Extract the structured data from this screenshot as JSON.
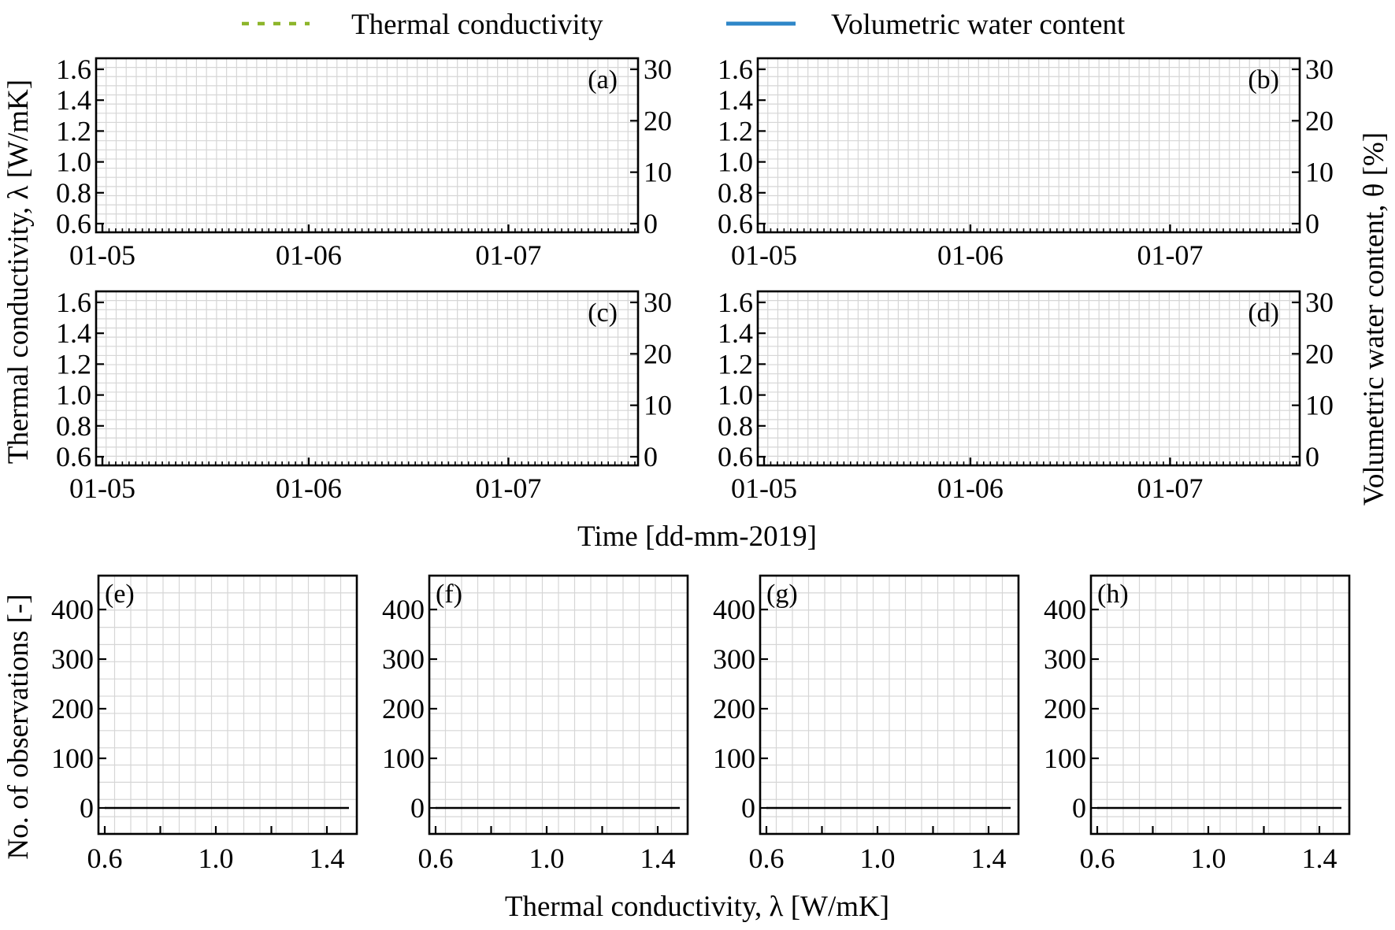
{
  "legend": {
    "thermal_label": "Thermal conductivity",
    "water_label": "Volumetric water content",
    "thermal_color": "#8db52a",
    "water_color": "#2e86c8"
  },
  "axis_titles": {
    "time_left_y": "Thermal conductivity,  λ [W/mK]",
    "time_right_y": "Volumetric water content,  θ [%]",
    "time_x": "Time [dd-mm-2019]",
    "hist_y": "No. of observations [-]",
    "hist_x": "Thermal conductivity,  λ [W/mK]"
  },
  "chart_data": [
    {
      "panel": "(a)",
      "type": "line",
      "x_ticks": [
        "01-05",
        "01-06",
        "01-07"
      ],
      "y_ticks": [
        "0.6",
        "0.8",
        "1.0",
        "1.2",
        "1.4",
        "1.6"
      ],
      "y2_ticks": [
        "0",
        "10",
        "20",
        "30"
      ],
      "ylim": [
        0.6,
        1.6
      ],
      "y2lim": [
        0,
        30
      ],
      "grid": true,
      "series": []
    },
    {
      "panel": "(b)",
      "type": "line",
      "x_ticks": [
        "01-05",
        "01-06",
        "01-07"
      ],
      "y_ticks": [
        "0.6",
        "0.8",
        "1.0",
        "1.2",
        "1.4",
        "1.6"
      ],
      "y2_ticks": [
        "0",
        "10",
        "20",
        "30"
      ],
      "ylim": [
        0.6,
        1.6
      ],
      "y2lim": [
        0,
        30
      ],
      "grid": true,
      "series": []
    },
    {
      "panel": "(c)",
      "type": "line",
      "x_ticks": [
        "01-05",
        "01-06",
        "01-07"
      ],
      "y_ticks": [
        "0.6",
        "0.8",
        "1.0",
        "1.2",
        "1.4",
        "1.6"
      ],
      "y2_ticks": [
        "0",
        "10",
        "20",
        "30"
      ],
      "ylim": [
        0.6,
        1.6
      ],
      "y2lim": [
        0,
        30
      ],
      "grid": true,
      "series": []
    },
    {
      "panel": "(d)",
      "type": "line",
      "x_ticks": [
        "01-05",
        "01-06",
        "01-07"
      ],
      "y_ticks": [
        "0.6",
        "0.8",
        "1.0",
        "1.2",
        "1.4",
        "1.6"
      ],
      "y2_ticks": [
        "0",
        "10",
        "20",
        "30"
      ],
      "ylim": [
        0.6,
        1.6
      ],
      "y2lim": [
        0,
        30
      ],
      "grid": true,
      "series": []
    },
    {
      "panel": "(e)",
      "type": "bar",
      "x_ticks": [
        "0.6",
        "1.0",
        "1.4"
      ],
      "y_ticks": [
        "0",
        "100",
        "200",
        "300",
        "400"
      ],
      "xlim": [
        0.6,
        1.4
      ],
      "ylim": [
        0,
        400
      ],
      "grid": true,
      "values": []
    },
    {
      "panel": "(f)",
      "type": "bar",
      "x_ticks": [
        "0.6",
        "1.0",
        "1.4"
      ],
      "y_ticks": [
        "0",
        "100",
        "200",
        "300",
        "400"
      ],
      "xlim": [
        0.6,
        1.4
      ],
      "ylim": [
        0,
        400
      ],
      "grid": true,
      "values": []
    },
    {
      "panel": "(g)",
      "type": "bar",
      "x_ticks": [
        "0.6",
        "1.0",
        "1.4"
      ],
      "y_ticks": [
        "0",
        "100",
        "200",
        "300",
        "400"
      ],
      "xlim": [
        0.6,
        1.4
      ],
      "ylim": [
        0,
        400
      ],
      "grid": true,
      "values": []
    },
    {
      "panel": "(h)",
      "type": "bar",
      "x_ticks": [
        "0.6",
        "1.0",
        "1.4"
      ],
      "y_ticks": [
        "0",
        "100",
        "200",
        "300",
        "400"
      ],
      "xlim": [
        0.6,
        1.4
      ],
      "ylim": [
        0,
        400
      ],
      "grid": true,
      "values": []
    }
  ]
}
